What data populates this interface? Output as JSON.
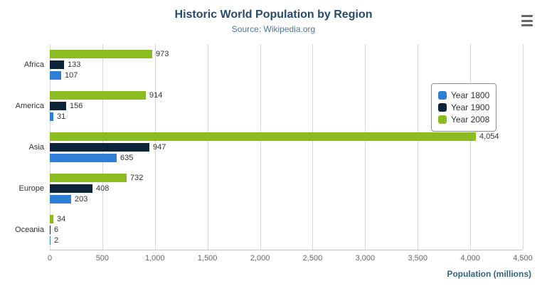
{
  "chart_data": {
    "type": "bar",
    "orientation": "horizontal",
    "title": "Historic World Population by Region",
    "subtitle": "Source: Wikipedia.org",
    "categories": [
      "Africa",
      "America",
      "Asia",
      "Europe",
      "Oceania"
    ],
    "series": [
      {
        "name": "Year 1800",
        "color": "#2f7ed8",
        "values": [
          107,
          31,
          635,
          203,
          2
        ]
      },
      {
        "name": "Year 1900",
        "color": "#0d233a",
        "values": [
          133,
          156,
          947,
          408,
          6
        ]
      },
      {
        "name": "Year 2008",
        "color": "#8bbc21",
        "values": [
          973,
          914,
          4054,
          732,
          34
        ]
      }
    ],
    "xlabel": "Population (millions)",
    "xlim": [
      0,
      4500
    ],
    "xticks": [
      0,
      500,
      1000,
      1500,
      2000,
      2500,
      3000,
      3500,
      4000,
      4500
    ],
    "grid": true,
    "legend_position": "right-floating",
    "bar_display_order_top_to_bottom": [
      "Year 2008",
      "Year 1900",
      "Year 1800"
    ]
  },
  "ui": {
    "export_menu_icon": "hamburger-menu-icon"
  }
}
